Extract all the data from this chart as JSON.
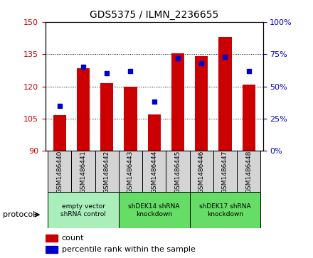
{
  "title": "GDS5375 / ILMN_2236655",
  "categories": [
    "GSM1486440",
    "GSM1486441",
    "GSM1486442",
    "GSM1486443",
    "GSM1486444",
    "GSM1486445",
    "GSM1486446",
    "GSM1486447",
    "GSM1486448"
  ],
  "count_values": [
    106.5,
    128.5,
    121.5,
    120.0,
    107.0,
    135.5,
    134.0,
    143.0,
    121.0
  ],
  "percentile_values": [
    35,
    65,
    60,
    62,
    38,
    72,
    68,
    73,
    62
  ],
  "ylim_left": [
    90,
    150
  ],
  "ylim_right": [
    0,
    100
  ],
  "yticks_left": [
    90,
    105,
    120,
    135,
    150
  ],
  "yticks_right": [
    0,
    25,
    50,
    75,
    100
  ],
  "bar_color": "#cc0000",
  "dot_color": "#0000cc",
  "bar_bottom": 90,
  "protocol_groups": [
    {
      "label": "empty vector\nshRNA control",
      "start": 0,
      "end": 3,
      "color": "#aaeebb"
    },
    {
      "label": "shDEK14 shRNA\nknockdown",
      "start": 3,
      "end": 6,
      "color": "#66dd66"
    },
    {
      "label": "shDEK17 shRNA\nknockdown",
      "start": 6,
      "end": 9,
      "color": "#66dd66"
    }
  ],
  "legend_count_label": "count",
  "legend_percentile_label": "percentile rank within the sample",
  "protocol_label": "protocol",
  "bg_color": "#ffffff",
  "tick_label_color_left": "#cc0000",
  "tick_label_color_right": "#0000cc",
  "xlabel_color": "#000000",
  "box_bg": "#d4d4d4"
}
